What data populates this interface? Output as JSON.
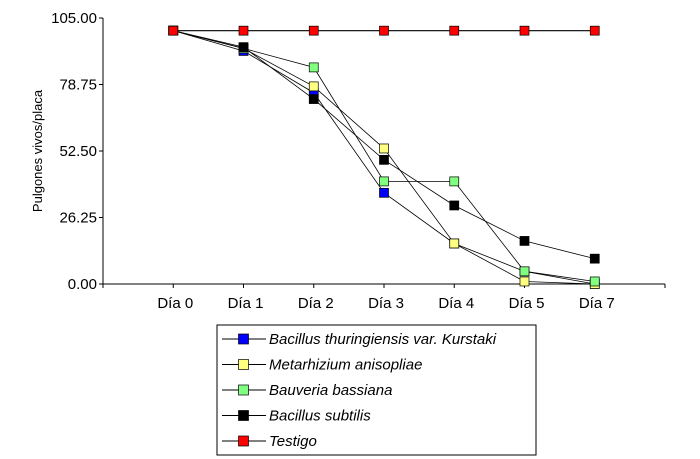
{
  "chart_data": {
    "type": "line",
    "title": "",
    "xlabel": "",
    "ylabel": "Pulgones vivos/placa",
    "ylim": [
      0,
      105
    ],
    "yticks": [
      "0.00",
      "26.25",
      "52.50",
      "78.75",
      "105.00"
    ],
    "ytick_values": [
      0,
      26.25,
      52.5,
      78.75,
      105
    ],
    "categories": [
      "Día 0",
      "Día 1",
      "Día 2",
      "Día 3",
      "Día 4",
      "Día 5",
      "Día 7"
    ],
    "grid": false,
    "legend_placement": "bottom",
    "series": [
      {
        "name": "Bacillus thuringiensis var. Kurstaki",
        "color": "#0000ff",
        "values": [
          100,
          92,
          75.5,
          36,
          16,
          5,
          0
        ]
      },
      {
        "name": "Metarhizium anisopliae",
        "color": "#ffff80",
        "values": [
          100,
          93,
          78,
          53.5,
          16,
          1,
          0
        ]
      },
      {
        "name": "Bauveria bassiana",
        "color": "#80ff80",
        "values": [
          100,
          93,
          85.5,
          40.5,
          40.5,
          5,
          1
        ]
      },
      {
        "name": "Bacillus subtilis",
        "color": "#000000",
        "values": [
          100,
          93.5,
          73,
          49,
          31,
          17,
          10
        ]
      },
      {
        "name": "Testigo",
        "color": "#ff0000",
        "values": [
          100,
          100,
          100,
          100,
          100,
          100,
          100
        ]
      }
    ]
  }
}
